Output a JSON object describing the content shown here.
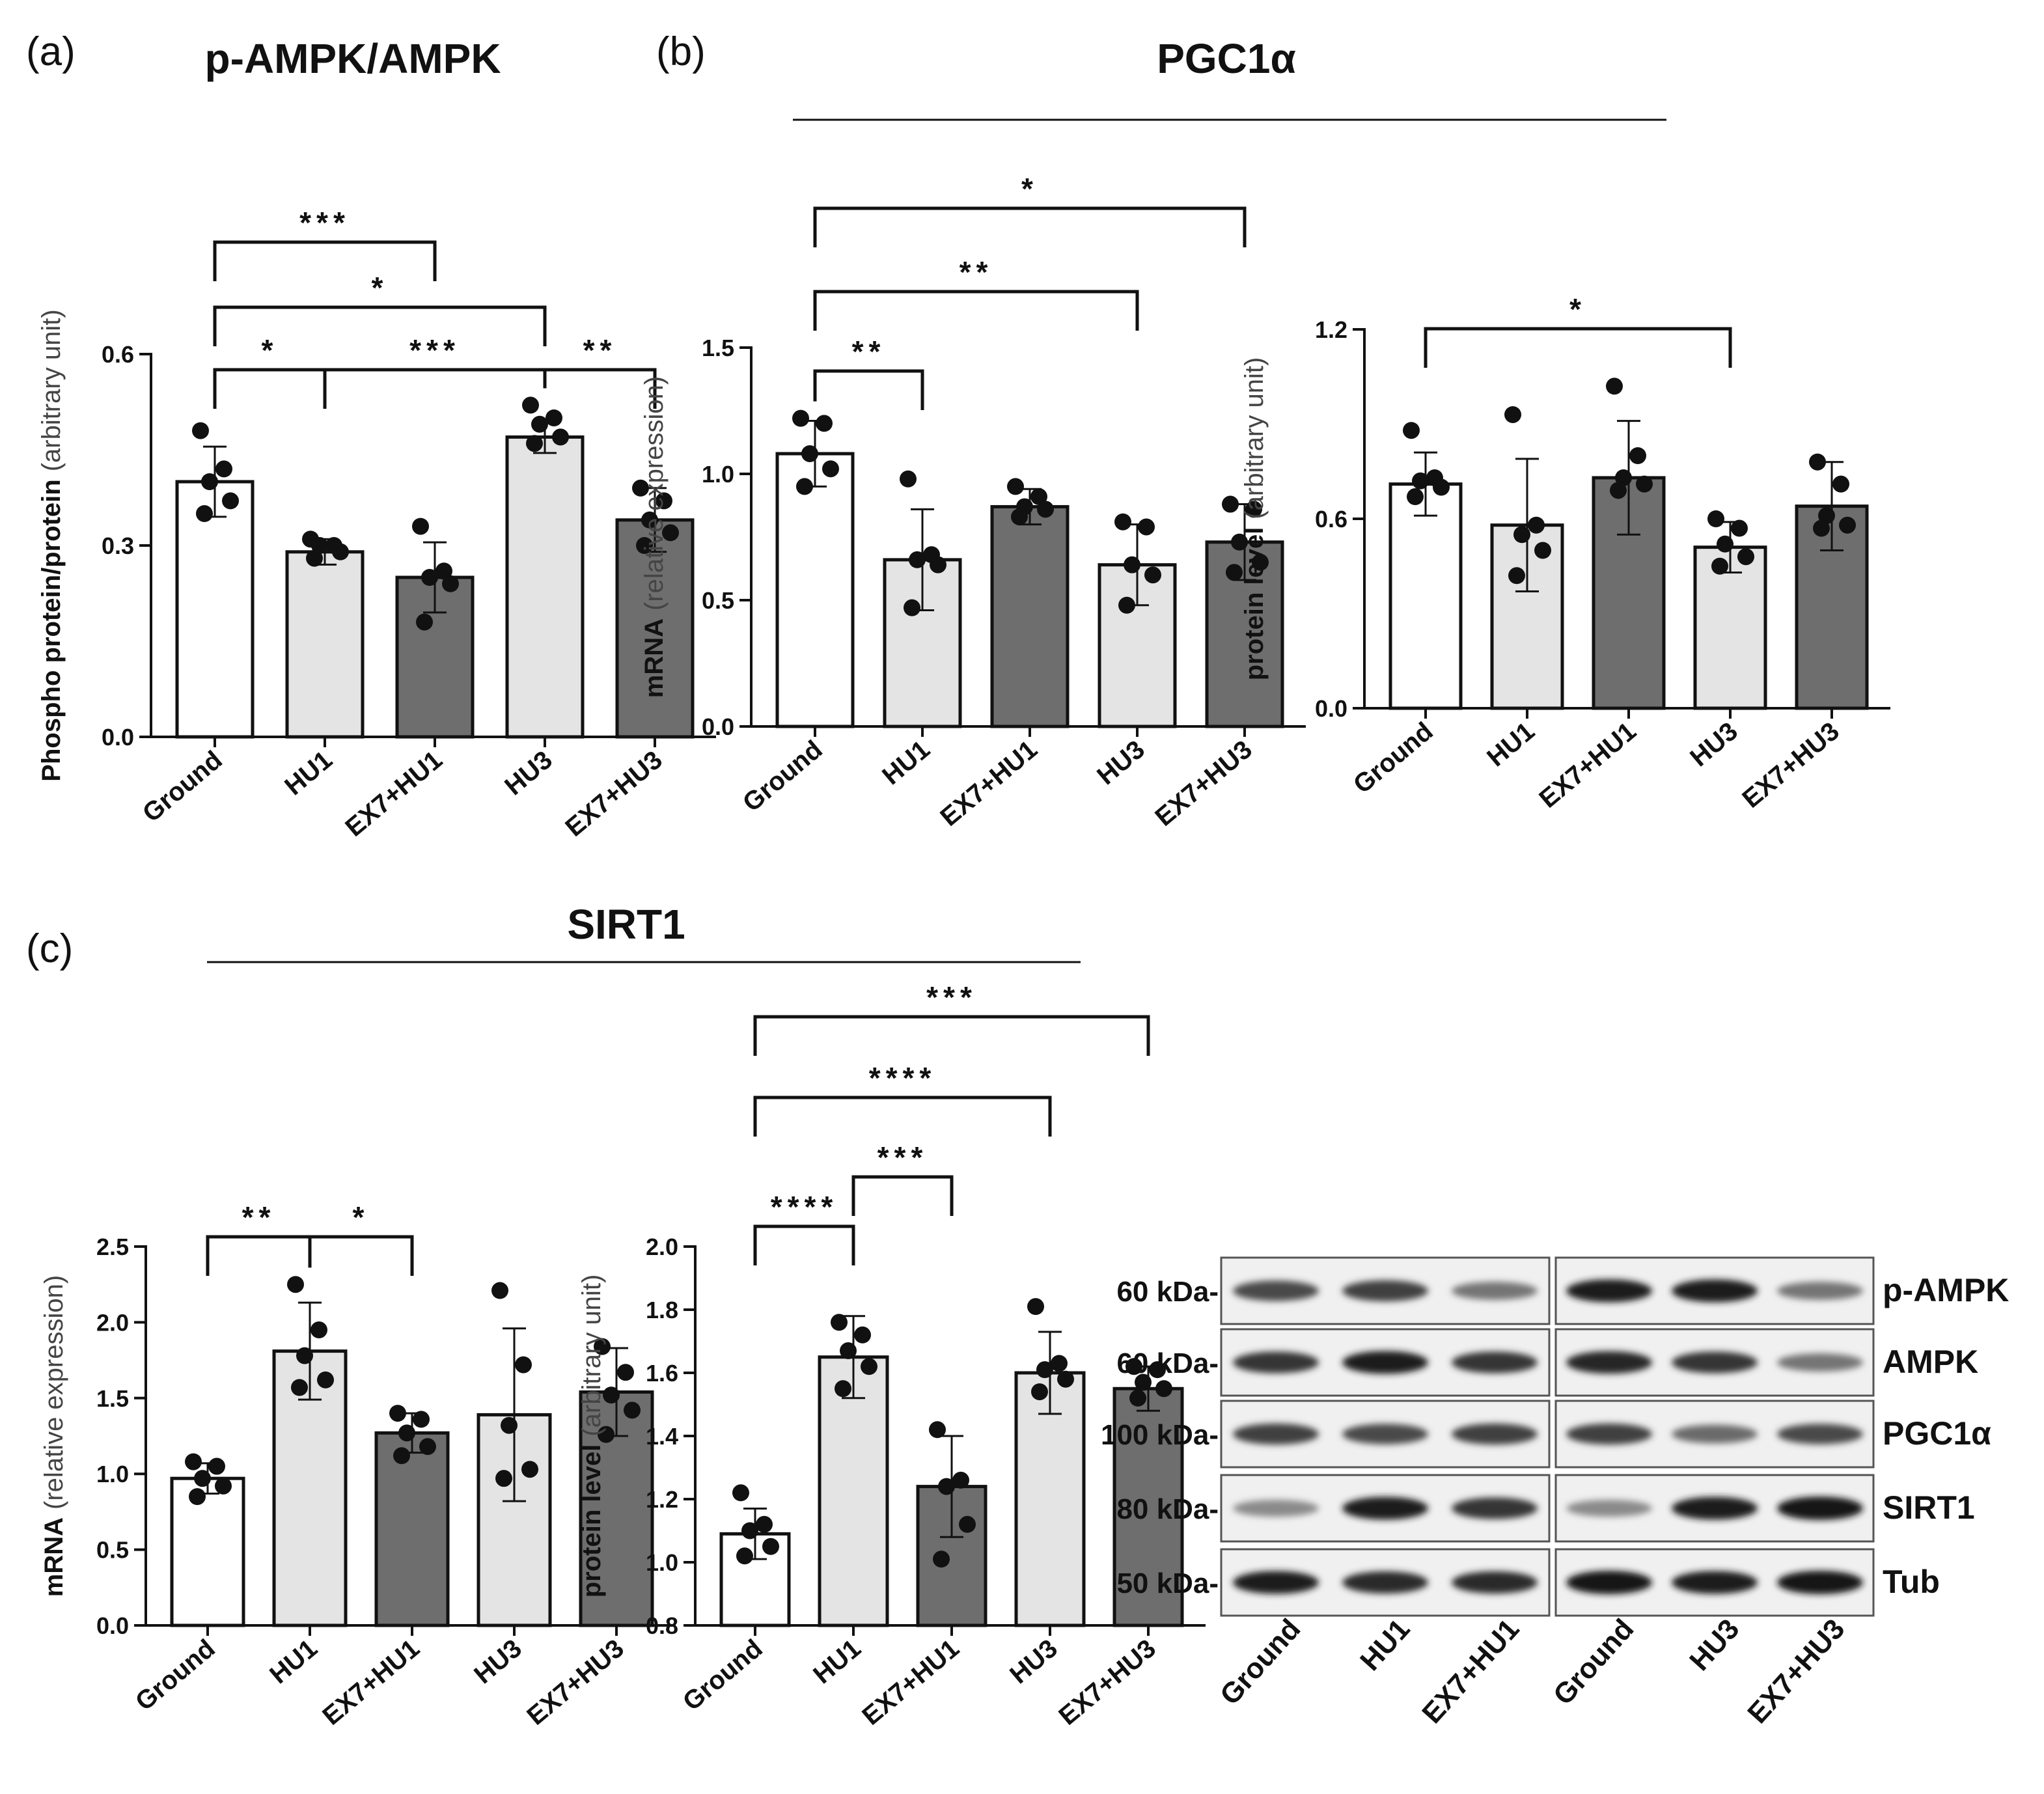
{
  "figure": {
    "panel_letters": [
      "(a)",
      "(b)",
      "(c)"
    ],
    "panel_titles": {
      "a": "p-AMPK/AMPK",
      "b": "PGC1α",
      "c": "SIRT1"
    }
  },
  "colors": {
    "ground": "#ffffff",
    "hu": "#e4e4e4",
    "ex7": "#6e6e6e",
    "stroke": "#111111"
  },
  "chart_data": [
    {
      "id": "a-pampk",
      "type": "bar",
      "panel": "(a)",
      "title": "p-AMPK/AMPK",
      "ylabel": "Phospho protein/protein",
      "ylabel_unit": "(arbitrary unit)",
      "ylim": [
        0,
        0.6
      ],
      "yticks": [
        "0.0",
        "0.3",
        "0.6"
      ],
      "categories": [
        "Ground",
        "HU1",
        "EX7+HU1",
        "HU3",
        "EX7+HU3"
      ],
      "values": [
        0.4,
        0.29,
        0.25,
        0.47,
        0.34
      ],
      "errors": [
        0.055,
        0.02,
        0.055,
        0.025,
        0.05
      ],
      "points": [
        [
          0.48,
          0.42,
          0.4,
          0.37,
          0.35
        ],
        [
          0.31,
          0.3,
          0.3,
          0.29,
          0.28
        ],
        [
          0.33,
          0.26,
          0.25,
          0.24,
          0.18
        ],
        [
          0.52,
          0.5,
          0.49,
          0.47,
          0.46
        ],
        [
          0.39,
          0.37,
          0.34,
          0.32,
          0.3
        ]
      ],
      "significance": [
        {
          "from": "Ground",
          "to": "HU1",
          "label": "*"
        },
        {
          "from": "HU1",
          "to": "HU3",
          "label": "***"
        },
        {
          "from": "HU3",
          "to": "EX7+HU3",
          "label": "**"
        },
        {
          "from": "Ground",
          "to": "HU3",
          "label": "*"
        },
        {
          "from": "Ground",
          "to": "EX7+HU1",
          "label": "***"
        }
      ]
    },
    {
      "id": "b-pgc1a-mrna",
      "type": "bar",
      "panel": "(b)",
      "title": "PGC1α",
      "ylabel": "mRNA",
      "ylabel_unit": "(relative expression)",
      "ylim": [
        0,
        1.5
      ],
      "yticks": [
        "0.0",
        "0.5",
        "1.0",
        "1.5"
      ],
      "categories": [
        "Ground",
        "HU1",
        "EX7+HU1",
        "HU3",
        "EX7+HU3"
      ],
      "values": [
        1.08,
        0.66,
        0.87,
        0.64,
        0.73
      ],
      "errors": [
        0.13,
        0.2,
        0.07,
        0.16,
        0.15
      ],
      "points": [
        [
          1.22,
          1.2,
          1.08,
          1.02,
          0.95
        ],
        [
          0.98,
          0.68,
          0.66,
          0.64,
          0.47
        ],
        [
          0.95,
          0.91,
          0.87,
          0.86,
          0.83
        ],
        [
          0.81,
          0.79,
          0.64,
          0.6,
          0.48
        ],
        [
          0.88,
          0.86,
          0.73,
          0.65,
          0.61
        ]
      ],
      "significance": [
        {
          "from": "Ground",
          "to": "HU1",
          "label": "**"
        },
        {
          "from": "Ground",
          "to": "HU3",
          "label": "**"
        },
        {
          "from": "Ground",
          "to": "EX7+HU3",
          "label": "*"
        }
      ]
    },
    {
      "id": "b-pgc1a-protein",
      "type": "bar",
      "panel": "(b)",
      "title": "",
      "ylabel": "protein level",
      "ylabel_unit": "(arbitrary unit)",
      "ylim": [
        0,
        1.2
      ],
      "yticks": [
        "0.0",
        "0.6",
        "1.2"
      ],
      "categories": [
        "Ground",
        "HU1",
        "EX7+HU1",
        "HU3",
        "EX7+HU3"
      ],
      "values": [
        0.71,
        0.58,
        0.73,
        0.51,
        0.64
      ],
      "errors": [
        0.1,
        0.21,
        0.18,
        0.08,
        0.14
      ],
      "points": [
        [
          0.88,
          0.73,
          0.72,
          0.7,
          0.67
        ],
        [
          0.93,
          0.58,
          0.55,
          0.5,
          0.42
        ],
        [
          1.02,
          0.8,
          0.73,
          0.71,
          0.69
        ],
        [
          0.6,
          0.57,
          0.52,
          0.48,
          0.45
        ],
        [
          0.78,
          0.71,
          0.61,
          0.58,
          0.57
        ]
      ],
      "significance": [
        {
          "from": "Ground",
          "to": "HU3",
          "label": "*"
        }
      ]
    },
    {
      "id": "c-sirt1-mrna",
      "type": "bar",
      "panel": "(c)",
      "title": "SIRT1",
      "ylabel": "mRNA",
      "ylabel_unit": "(relative expression)",
      "ylim": [
        0,
        2.5
      ],
      "yticks": [
        "0.0",
        "0.5",
        "1.0",
        "1.5",
        "2.0",
        "2.5"
      ],
      "categories": [
        "Ground",
        "HU1",
        "EX7+HU1",
        "HU3",
        "EX7+HU3"
      ],
      "values": [
        0.97,
        1.81,
        1.27,
        1.39,
        1.54
      ],
      "errors": [
        0.1,
        0.32,
        0.13,
        0.57,
        0.29
      ],
      "points": [
        [
          1.08,
          1.05,
          0.97,
          0.92,
          0.85
        ],
        [
          2.25,
          1.95,
          1.78,
          1.62,
          1.57
        ],
        [
          1.4,
          1.36,
          1.27,
          1.18,
          1.12
        ],
        [
          2.21,
          1.72,
          1.32,
          1.03,
          0.97
        ],
        [
          1.84,
          1.67,
          1.52,
          1.42,
          1.26
        ]
      ],
      "significance": [
        {
          "from": "Ground",
          "to": "HU1",
          "label": "**"
        },
        {
          "from": "HU1",
          "to": "EX7+HU1",
          "label": "*"
        }
      ]
    },
    {
      "id": "c-sirt1-protein",
      "type": "bar",
      "panel": "(c)",
      "title": "",
      "ylabel": "protein level",
      "ylabel_unit": "(arbitrary unit)",
      "ylim": [
        0.8,
        2.0
      ],
      "yticks": [
        "0.8",
        "1.0",
        "1.2",
        "1.4",
        "1.6",
        "1.8",
        "2.0"
      ],
      "categories": [
        "Ground",
        "HU1",
        "EX7+HU1",
        "HU3",
        "EX7+HU3"
      ],
      "values": [
        1.09,
        1.65,
        1.24,
        1.6,
        1.55
      ],
      "errors": [
        0.08,
        0.13,
        0.16,
        0.13,
        0.07
      ],
      "points": [
        [
          1.22,
          1.12,
          1.1,
          1.05,
          1.02
        ],
        [
          1.76,
          1.72,
          1.67,
          1.62,
          1.55
        ],
        [
          1.42,
          1.26,
          1.24,
          1.12,
          1.01
        ],
        [
          1.81,
          1.63,
          1.61,
          1.58,
          1.54
        ],
        [
          1.62,
          1.61,
          1.57,
          1.55,
          1.52
        ]
      ],
      "significance": [
        {
          "from": "Ground",
          "to": "HU1",
          "label": "****"
        },
        {
          "from": "HU1",
          "to": "EX7+HU1",
          "label": "***"
        },
        {
          "from": "Ground",
          "to": "HU3",
          "label": "****"
        },
        {
          "from": "Ground",
          "to": "EX7+HU3",
          "label": "***"
        }
      ]
    }
  ],
  "western_blot": {
    "markers": [
      "60 kDa-",
      "60 kDa-",
      "100 kDa-",
      "80 kDa-",
      "50 kDa-"
    ],
    "proteins": [
      "p-AMPK",
      "AMPK",
      "PGC1α",
      "SIRT1",
      "Tub"
    ],
    "lanes_left": [
      "Ground",
      "HU1",
      "EX7+HU1"
    ],
    "lanes_right": [
      "Ground",
      "HU3",
      "EX7+HU3"
    ],
    "band_intensity": [
      [
        0.75,
        0.8,
        0.55,
        0.95,
        0.95,
        0.55
      ],
      [
        0.85,
        0.95,
        0.85,
        0.92,
        0.85,
        0.55
      ],
      [
        0.8,
        0.75,
        0.8,
        0.8,
        0.6,
        0.75
      ],
      [
        0.45,
        0.95,
        0.85,
        0.45,
        0.95,
        1.0
      ],
      [
        0.95,
        0.9,
        0.9,
        1.0,
        0.95,
        1.0
      ]
    ]
  }
}
